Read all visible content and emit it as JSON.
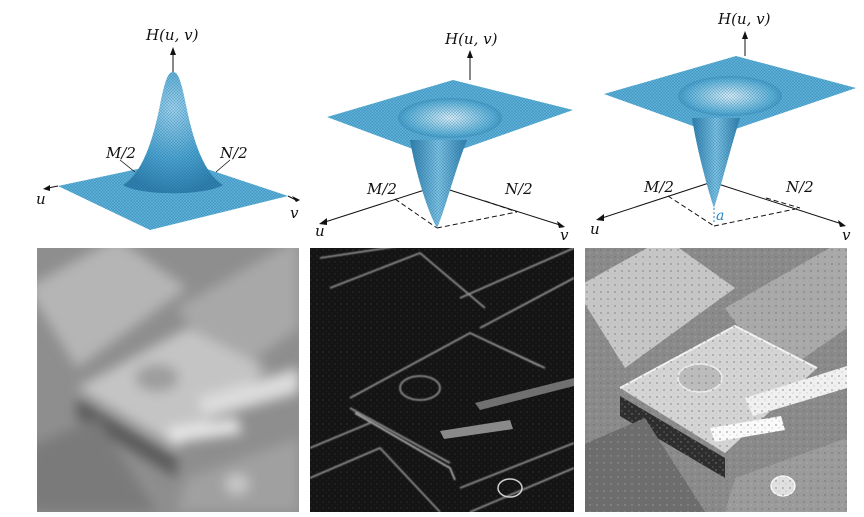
{
  "plots": [
    {
      "surface": "gaussian-lowpass-peak",
      "z_label": "H(u, v)",
      "u_mid": "M/2",
      "v_mid": "N/2",
      "u_axis": "u",
      "v_axis": "v"
    },
    {
      "surface": "gaussian-highpass-hole",
      "z_label": "H(u, v)",
      "u_mid": "M/2",
      "v_mid": "N/2",
      "u_axis": "u",
      "v_axis": "v"
    },
    {
      "surface": "high-frequency-emphasis",
      "z_label": "H(u, v)",
      "u_mid": "M/2",
      "v_mid": "N/2",
      "u_axis": "u",
      "v_axis": "v",
      "offset_label": "a"
    }
  ],
  "images": [
    {
      "content": "lowpass-filtered blurred micrograph"
    },
    {
      "content": "highpass-filtered edge image"
    },
    {
      "content": "high-frequency emphasis sharpened image"
    }
  ],
  "colors": {
    "surface": "#5ab0d8",
    "surface_dark": "#2f7fae",
    "mesh": "#1d5e86",
    "accent_a": "#2a86c4"
  }
}
